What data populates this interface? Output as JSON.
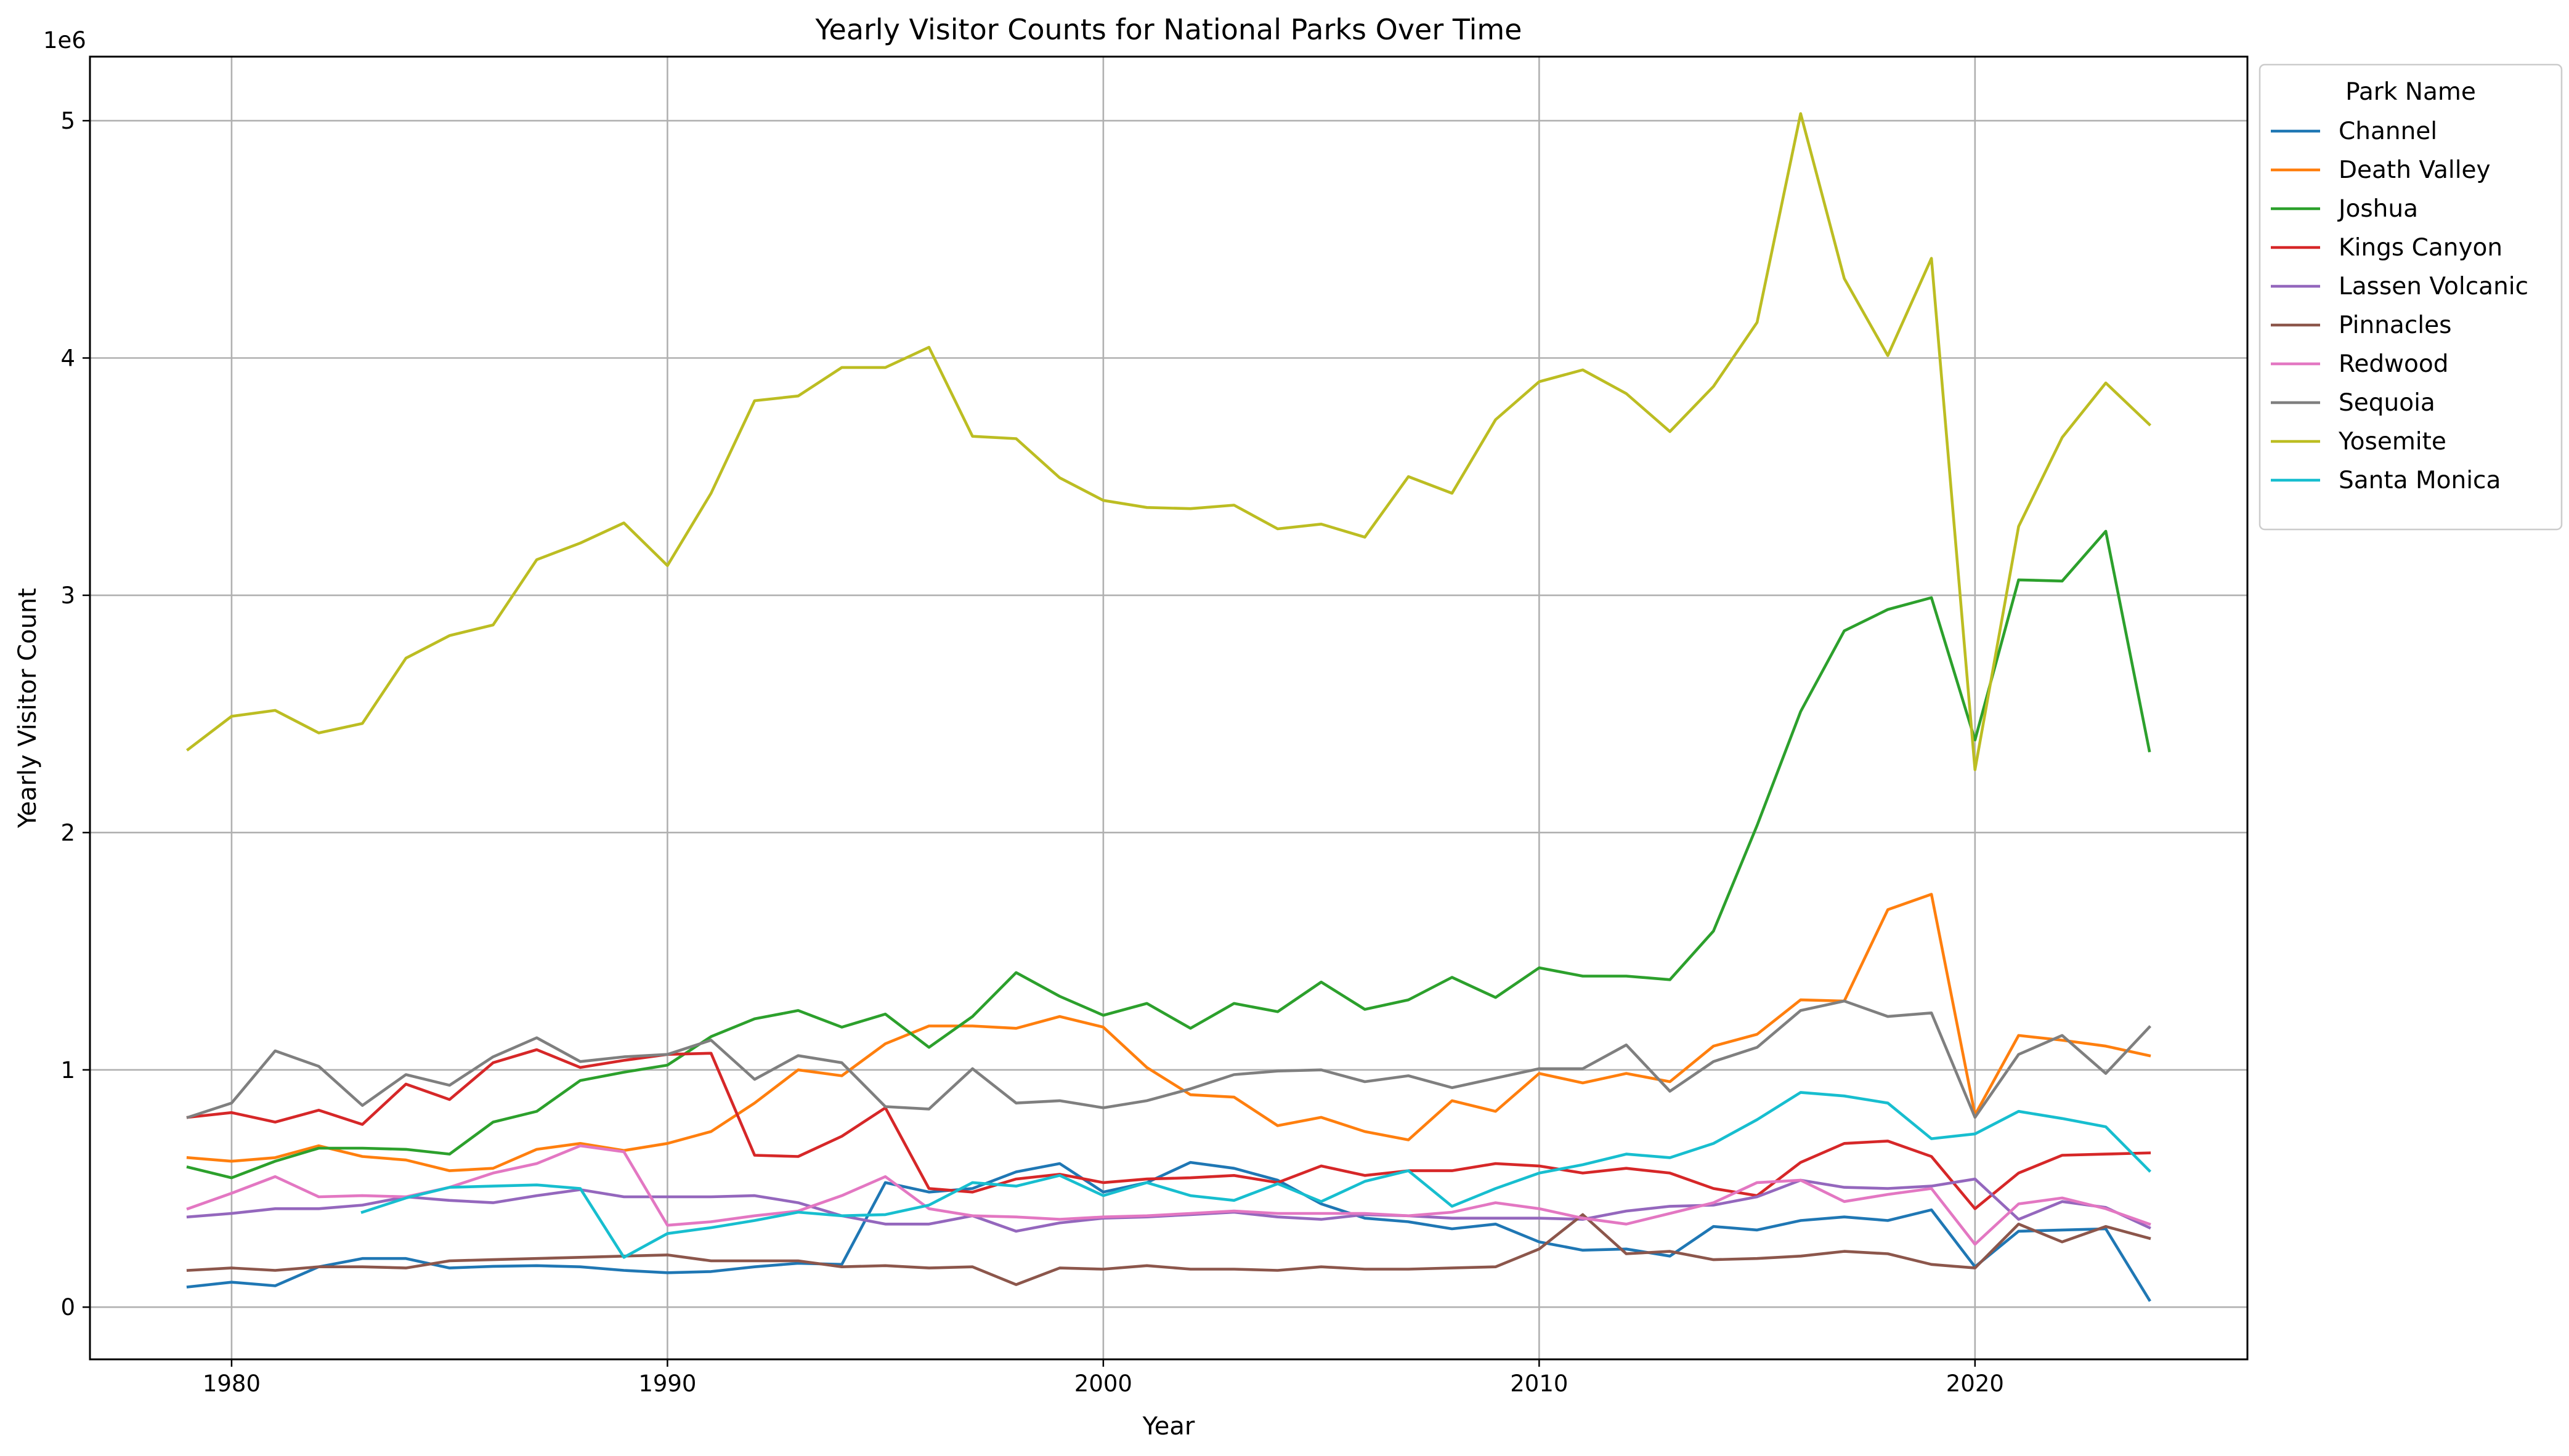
{
  "chart_data": {
    "type": "line",
    "title": "Yearly Visitor Counts for National Parks Over Time",
    "xlabel": "Year",
    "ylabel": "Yearly Visitor Count",
    "y_offset_label": "1e6",
    "xlim": [
      1976.75,
      2026.25
    ],
    "ylim": [
      -220000,
      5270000
    ],
    "x_ticks": [
      1980,
      1990,
      2000,
      2010,
      2020
    ],
    "x_tick_labels": [
      "1980",
      "1990",
      "2000",
      "2010",
      "2020"
    ],
    "y_ticks": [
      0,
      1000000,
      2000000,
      3000000,
      4000000,
      5000000
    ],
    "y_tick_labels": [
      "0",
      "1",
      "2",
      "3",
      "4",
      "5"
    ],
    "grid": true,
    "legend_title": "Park Name",
    "legend_position": "outside-top-right",
    "x": [
      1979,
      1980,
      1981,
      1982,
      1983,
      1984,
      1985,
      1986,
      1987,
      1988,
      1989,
      1990,
      1991,
      1992,
      1993,
      1994,
      1995,
      1996,
      1997,
      1998,
      1999,
      2000,
      2001,
      2002,
      2003,
      2004,
      2005,
      2006,
      2007,
      2008,
      2009,
      2010,
      2011,
      2012,
      2013,
      2014,
      2015,
      2016,
      2017,
      2018,
      2019,
      2020,
      2021,
      2022,
      2023,
      2024
    ],
    "series": [
      {
        "name": "Channel",
        "color": "#1f77b4",
        "values": [
          85000,
          105000,
          90000,
          170000,
          205000,
          205000,
          165000,
          172000,
          175000,
          170000,
          155000,
          145000,
          150000,
          170000,
          185000,
          180000,
          525000,
          485000,
          500000,
          570000,
          605000,
          485000,
          525000,
          610000,
          585000,
          535000,
          435000,
          375000,
          360000,
          330000,
          350000,
          275000,
          240000,
          245000,
          215000,
          340000,
          325000,
          365000,
          380000,
          365000,
          410000,
          170000,
          320000,
          325000,
          330000,
          30000
        ]
      },
      {
        "name": "Death Valley",
        "color": "#ff7f0e",
        "values": [
          630000,
          615000,
          630000,
          680000,
          635000,
          620000,
          575000,
          585000,
          665000,
          690000,
          660000,
          690000,
          740000,
          860000,
          1000000,
          975000,
          1110000,
          1185000,
          1185000,
          1175000,
          1225000,
          1180000,
          1010000,
          895000,
          885000,
          765000,
          800000,
          740000,
          705000,
          870000,
          825000,
          985000,
          945000,
          985000,
          950000,
          1100000,
          1150000,
          1295000,
          1290000,
          1675000,
          1740000,
          810000,
          1145000,
          1125000,
          1100000,
          1060000
        ]
      },
      {
        "name": "Joshua",
        "color": "#2ca02c",
        "values": [
          590000,
          545000,
          615000,
          670000,
          670000,
          665000,
          645000,
          780000,
          825000,
          955000,
          990000,
          1020000,
          1140000,
          1215000,
          1250000,
          1180000,
          1235000,
          1095000,
          1225000,
          1410000,
          1310000,
          1230000,
          1280000,
          1175000,
          1280000,
          1245000,
          1370000,
          1255000,
          1295000,
          1390000,
          1305000,
          1430000,
          1395000,
          1395000,
          1380000,
          1585000,
          2030000,
          2510000,
          2850000,
          2940000,
          2990000,
          2390000,
          3065000,
          3060000,
          3270000,
          2345000
        ]
      },
      {
        "name": "Kings Canyon",
        "color": "#d62728",
        "values": [
          800000,
          820000,
          780000,
          830000,
          770000,
          940000,
          875000,
          1030000,
          1085000,
          1010000,
          1040000,
          1065000,
          1070000,
          640000,
          635000,
          720000,
          840000,
          500000,
          485000,
          540000,
          560000,
          525000,
          540000,
          545000,
          555000,
          525000,
          595000,
          555000,
          575000,
          575000,
          605000,
          595000,
          565000,
          585000,
          565000,
          500000,
          470000,
          610000,
          690000,
          700000,
          635000,
          415000,
          565000,
          640000,
          645000,
          650000
        ]
      },
      {
        "name": "Lassen Volcanic",
        "color": "#9467bd",
        "values": [
          380000,
          395000,
          415000,
          415000,
          430000,
          465000,
          450000,
          440000,
          470000,
          495000,
          465000,
          465000,
          465000,
          470000,
          440000,
          385000,
          350000,
          350000,
          385000,
          320000,
          355000,
          375000,
          380000,
          390000,
          400000,
          380000,
          370000,
          390000,
          385000,
          375000,
          375000,
          375000,
          370000,
          405000,
          425000,
          430000,
          465000,
          535000,
          505000,
          500000,
          510000,
          540000,
          370000,
          445000,
          420000,
          335000
        ]
      },
      {
        "name": "Pinnacles",
        "color": "#8c564b",
        "values": [
          155000,
          165000,
          155000,
          170000,
          170000,
          165000,
          195000,
          200000,
          205000,
          210000,
          215000,
          220000,
          195000,
          195000,
          195000,
          170000,
          175000,
          165000,
          170000,
          95000,
          165000,
          160000,
          175000,
          160000,
          160000,
          155000,
          170000,
          160000,
          160000,
          165000,
          170000,
          245000,
          390000,
          225000,
          235000,
          200000,
          205000,
          215000,
          235000,
          225000,
          180000,
          165000,
          350000,
          275000,
          340000,
          290000
        ]
      },
      {
        "name": "Redwood",
        "color": "#e377c2",
        "values": [
          415000,
          480000,
          550000,
          465000,
          470000,
          465000,
          505000,
          565000,
          605000,
          680000,
          655000,
          345000,
          360000,
          385000,
          405000,
          470000,
          550000,
          415000,
          385000,
          380000,
          370000,
          380000,
          385000,
          395000,
          405000,
          395000,
          395000,
          395000,
          385000,
          400000,
          440000,
          415000,
          375000,
          350000,
          395000,
          440000,
          525000,
          535000,
          445000,
          475000,
          500000,
          265000,
          435000,
          460000,
          415000,
          350000
        ]
      },
      {
        "name": "Sequoia",
        "color": "#7f7f7f",
        "values": [
          800000,
          860000,
          1080000,
          1015000,
          850000,
          980000,
          935000,
          1055000,
          1135000,
          1035000,
          1055000,
          1065000,
          1125000,
          960000,
          1060000,
          1030000,
          845000,
          835000,
          1005000,
          860000,
          870000,
          840000,
          870000,
          920000,
          980000,
          995000,
          1000000,
          950000,
          975000,
          925000,
          965000,
          1005000,
          1005000,
          1105000,
          910000,
          1035000,
          1095000,
          1250000,
          1290000,
          1225000,
          1240000,
          800000,
          1065000,
          1145000,
          985000,
          1180000
        ]
      },
      {
        "name": "Yosemite",
        "color": "#bcbd22",
        "values": [
          2350000,
          2490000,
          2515000,
          2420000,
          2460000,
          2735000,
          2830000,
          2875000,
          3150000,
          3220000,
          3305000,
          3125000,
          3430000,
          3820000,
          3840000,
          3960000,
          3960000,
          4045000,
          3670000,
          3660000,
          3495000,
          3400000,
          3370000,
          3365000,
          3380000,
          3280000,
          3300000,
          3245000,
          3500000,
          3430000,
          3740000,
          3900000,
          3950000,
          3850000,
          3690000,
          3880000,
          4150000,
          5030000,
          4335000,
          4010000,
          4420000,
          2265000,
          3290000,
          3665000,
          3895000,
          3720000
        ]
      },
      {
        "name": "Santa Monica",
        "color": "#17becf",
        "values": [
          null,
          null,
          null,
          null,
          400000,
          460000,
          505000,
          510000,
          515000,
          500000,
          210000,
          310000,
          335000,
          365000,
          400000,
          385000,
          390000,
          430000,
          525000,
          510000,
          555000,
          470000,
          525000,
          470000,
          450000,
          520000,
          445000,
          530000,
          575000,
          425000,
          500000,
          565000,
          600000,
          645000,
          630000,
          690000,
          790000,
          905000,
          890000,
          860000,
          710000,
          730000,
          825000,
          795000,
          760000,
          575000
        ]
      }
    ]
  }
}
